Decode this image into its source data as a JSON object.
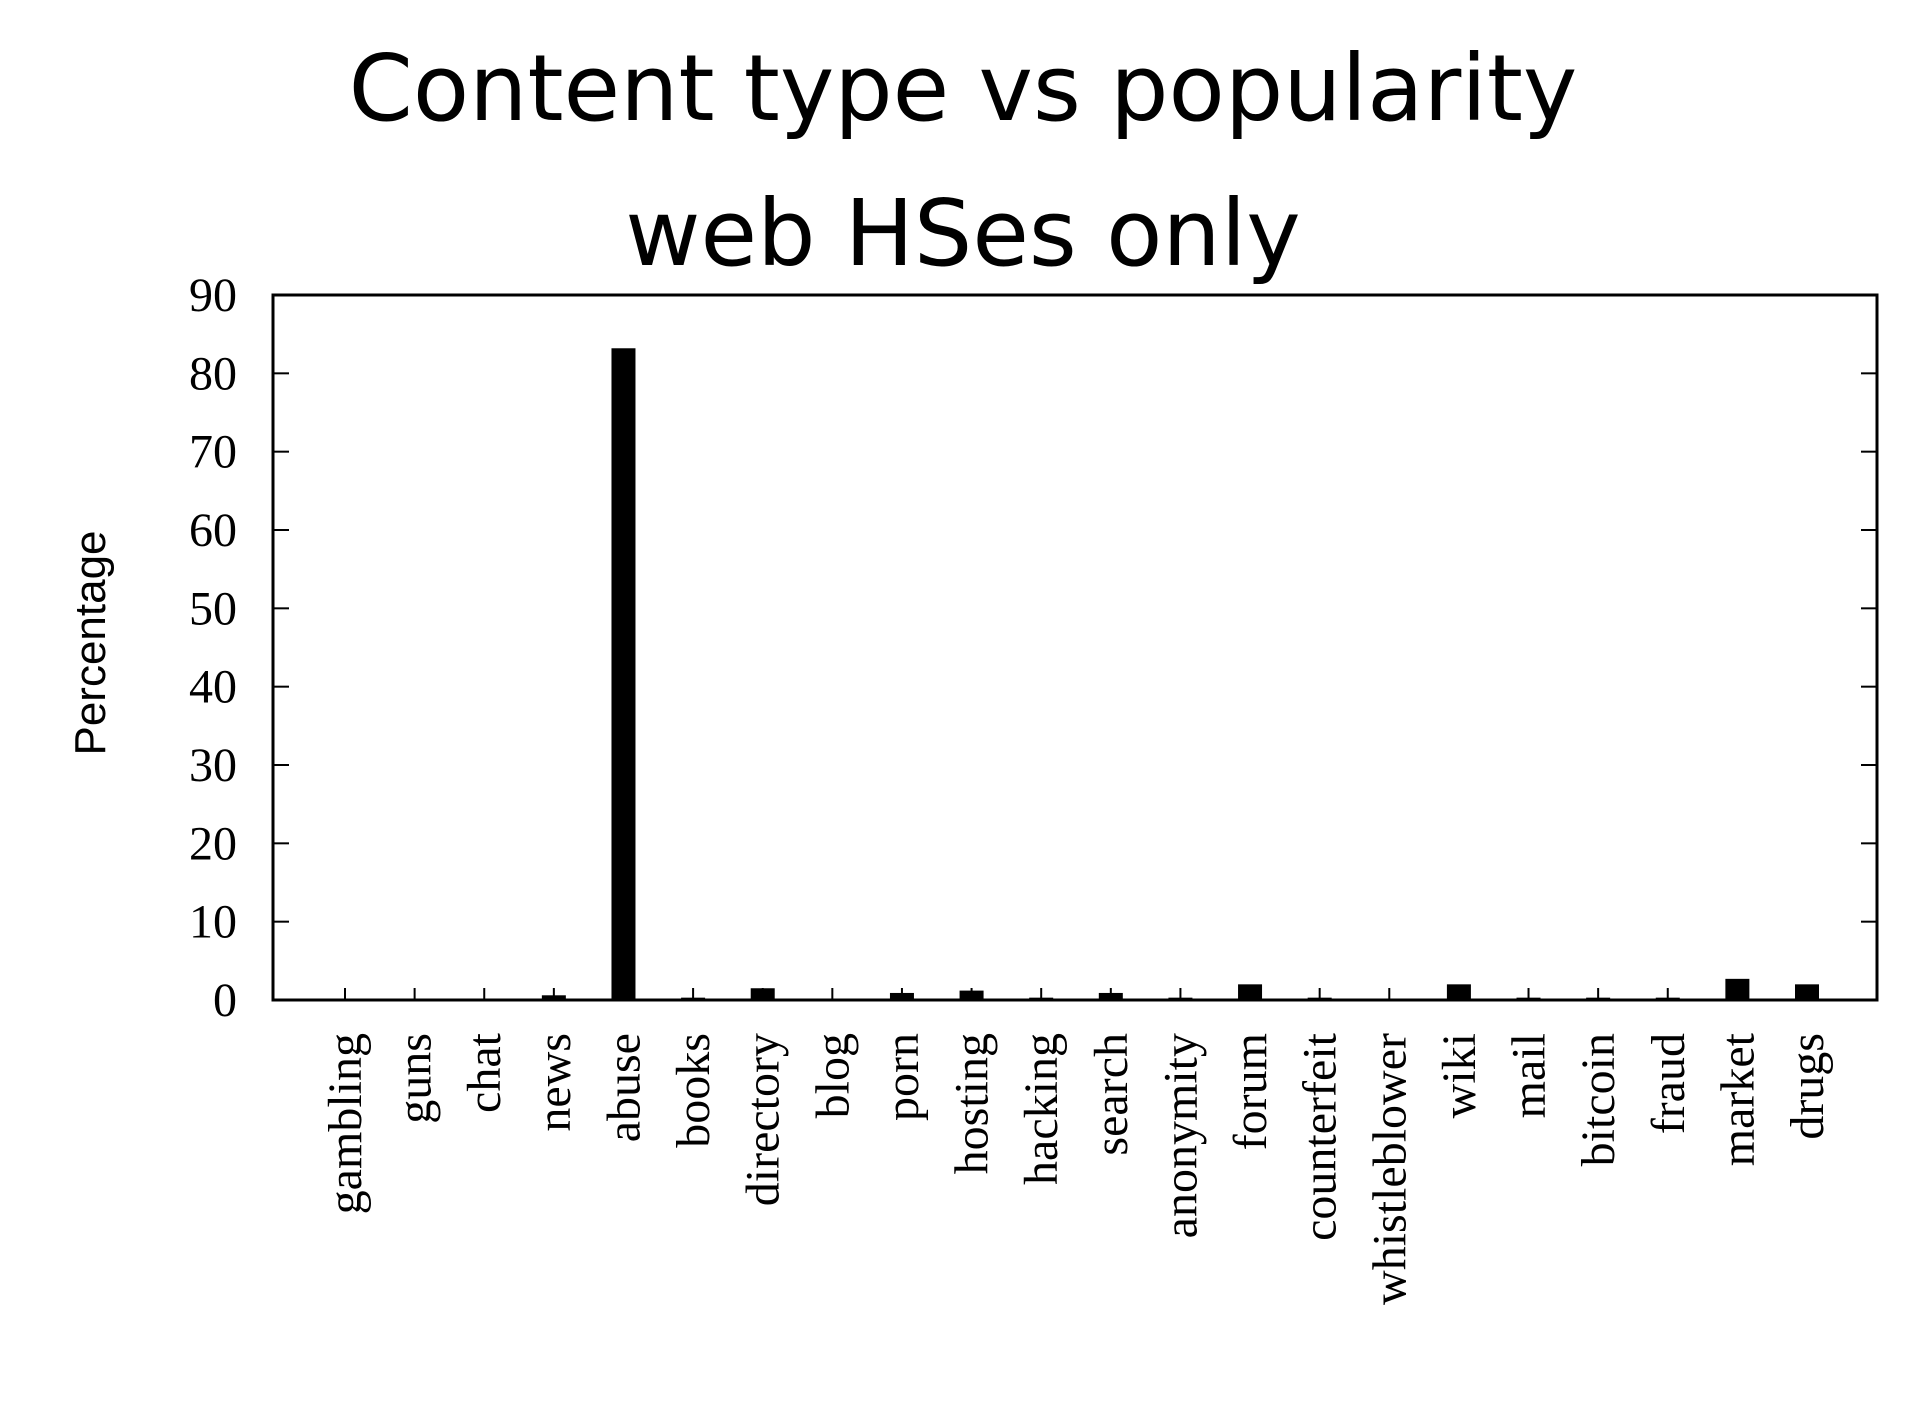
{
  "chart_data": {
    "type": "bar",
    "title": "Content type vs popularity",
    "subtitle": "web HSes only",
    "xlabel": "",
    "ylabel": "Percentage",
    "ylim": [
      0,
      90
    ],
    "yticks": [
      "90",
      "80",
      "70",
      "60",
      "50",
      "40",
      "30",
      "20",
      "10",
      "0"
    ],
    "grid": false,
    "legend": "none",
    "bar_color": "#000000",
    "categories": [
      "gambling",
      "guns",
      "chat",
      "news",
      "abuse",
      "books",
      "directory",
      "blog",
      "porn",
      "hosting",
      "hacking",
      "search",
      "anonymity",
      "forum",
      "counterfeit",
      "whistleblower",
      "wiki",
      "mail",
      "bitcoin",
      "fraud",
      "market",
      "drugs"
    ],
    "values": [
      0,
      0,
      0,
      0.6,
      83.2,
      0.3,
      1.5,
      0,
      0.9,
      1.2,
      0.3,
      0.9,
      0.3,
      2.0,
      0.3,
      0,
      2.0,
      0.3,
      0.3,
      0.3,
      2.7,
      2.0
    ]
  }
}
